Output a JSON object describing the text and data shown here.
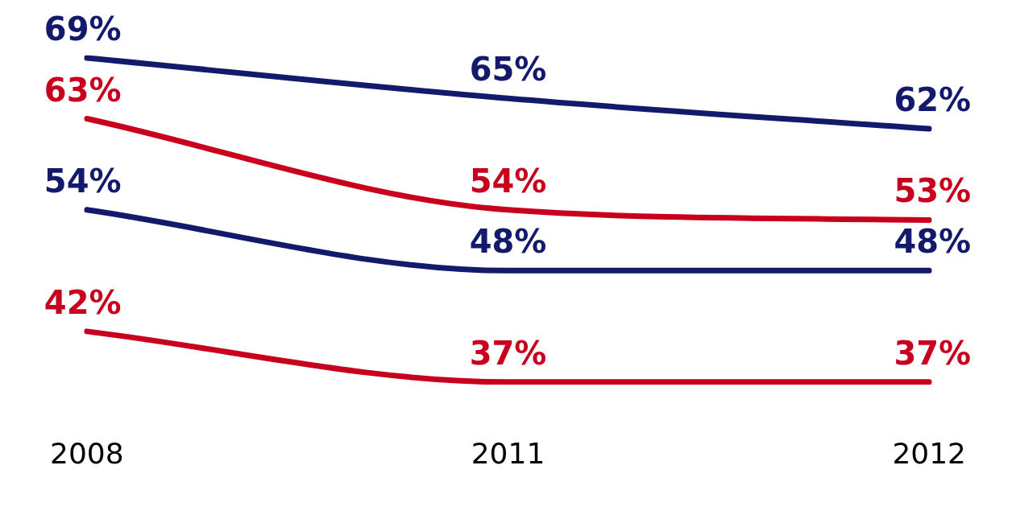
{
  "chart_data": {
    "type": "line",
    "categories": [
      "2008",
      "2011",
      "2012"
    ],
    "series": [
      {
        "color": "#141a6b",
        "values": [
          69,
          65,
          62
        ],
        "value_labels": [
          "69%",
          "65%",
          "62%"
        ]
      },
      {
        "color": "#c8001e",
        "values": [
          63,
          54,
          53
        ],
        "value_labels": [
          "63%",
          "54%",
          "53%"
        ]
      },
      {
        "color": "#141a6b",
        "values": [
          54,
          48,
          48
        ],
        "value_labels": [
          "54%",
          "48%",
          "48%"
        ]
      },
      {
        "color": "#c8001e",
        "values": [
          42,
          37,
          37
        ],
        "value_labels": [
          "42%",
          "37%",
          "37%"
        ]
      }
    ],
    "tick_labels": "x",
    "grid": false,
    "legend": false,
    "marker": "none",
    "line_style": "solid"
  }
}
